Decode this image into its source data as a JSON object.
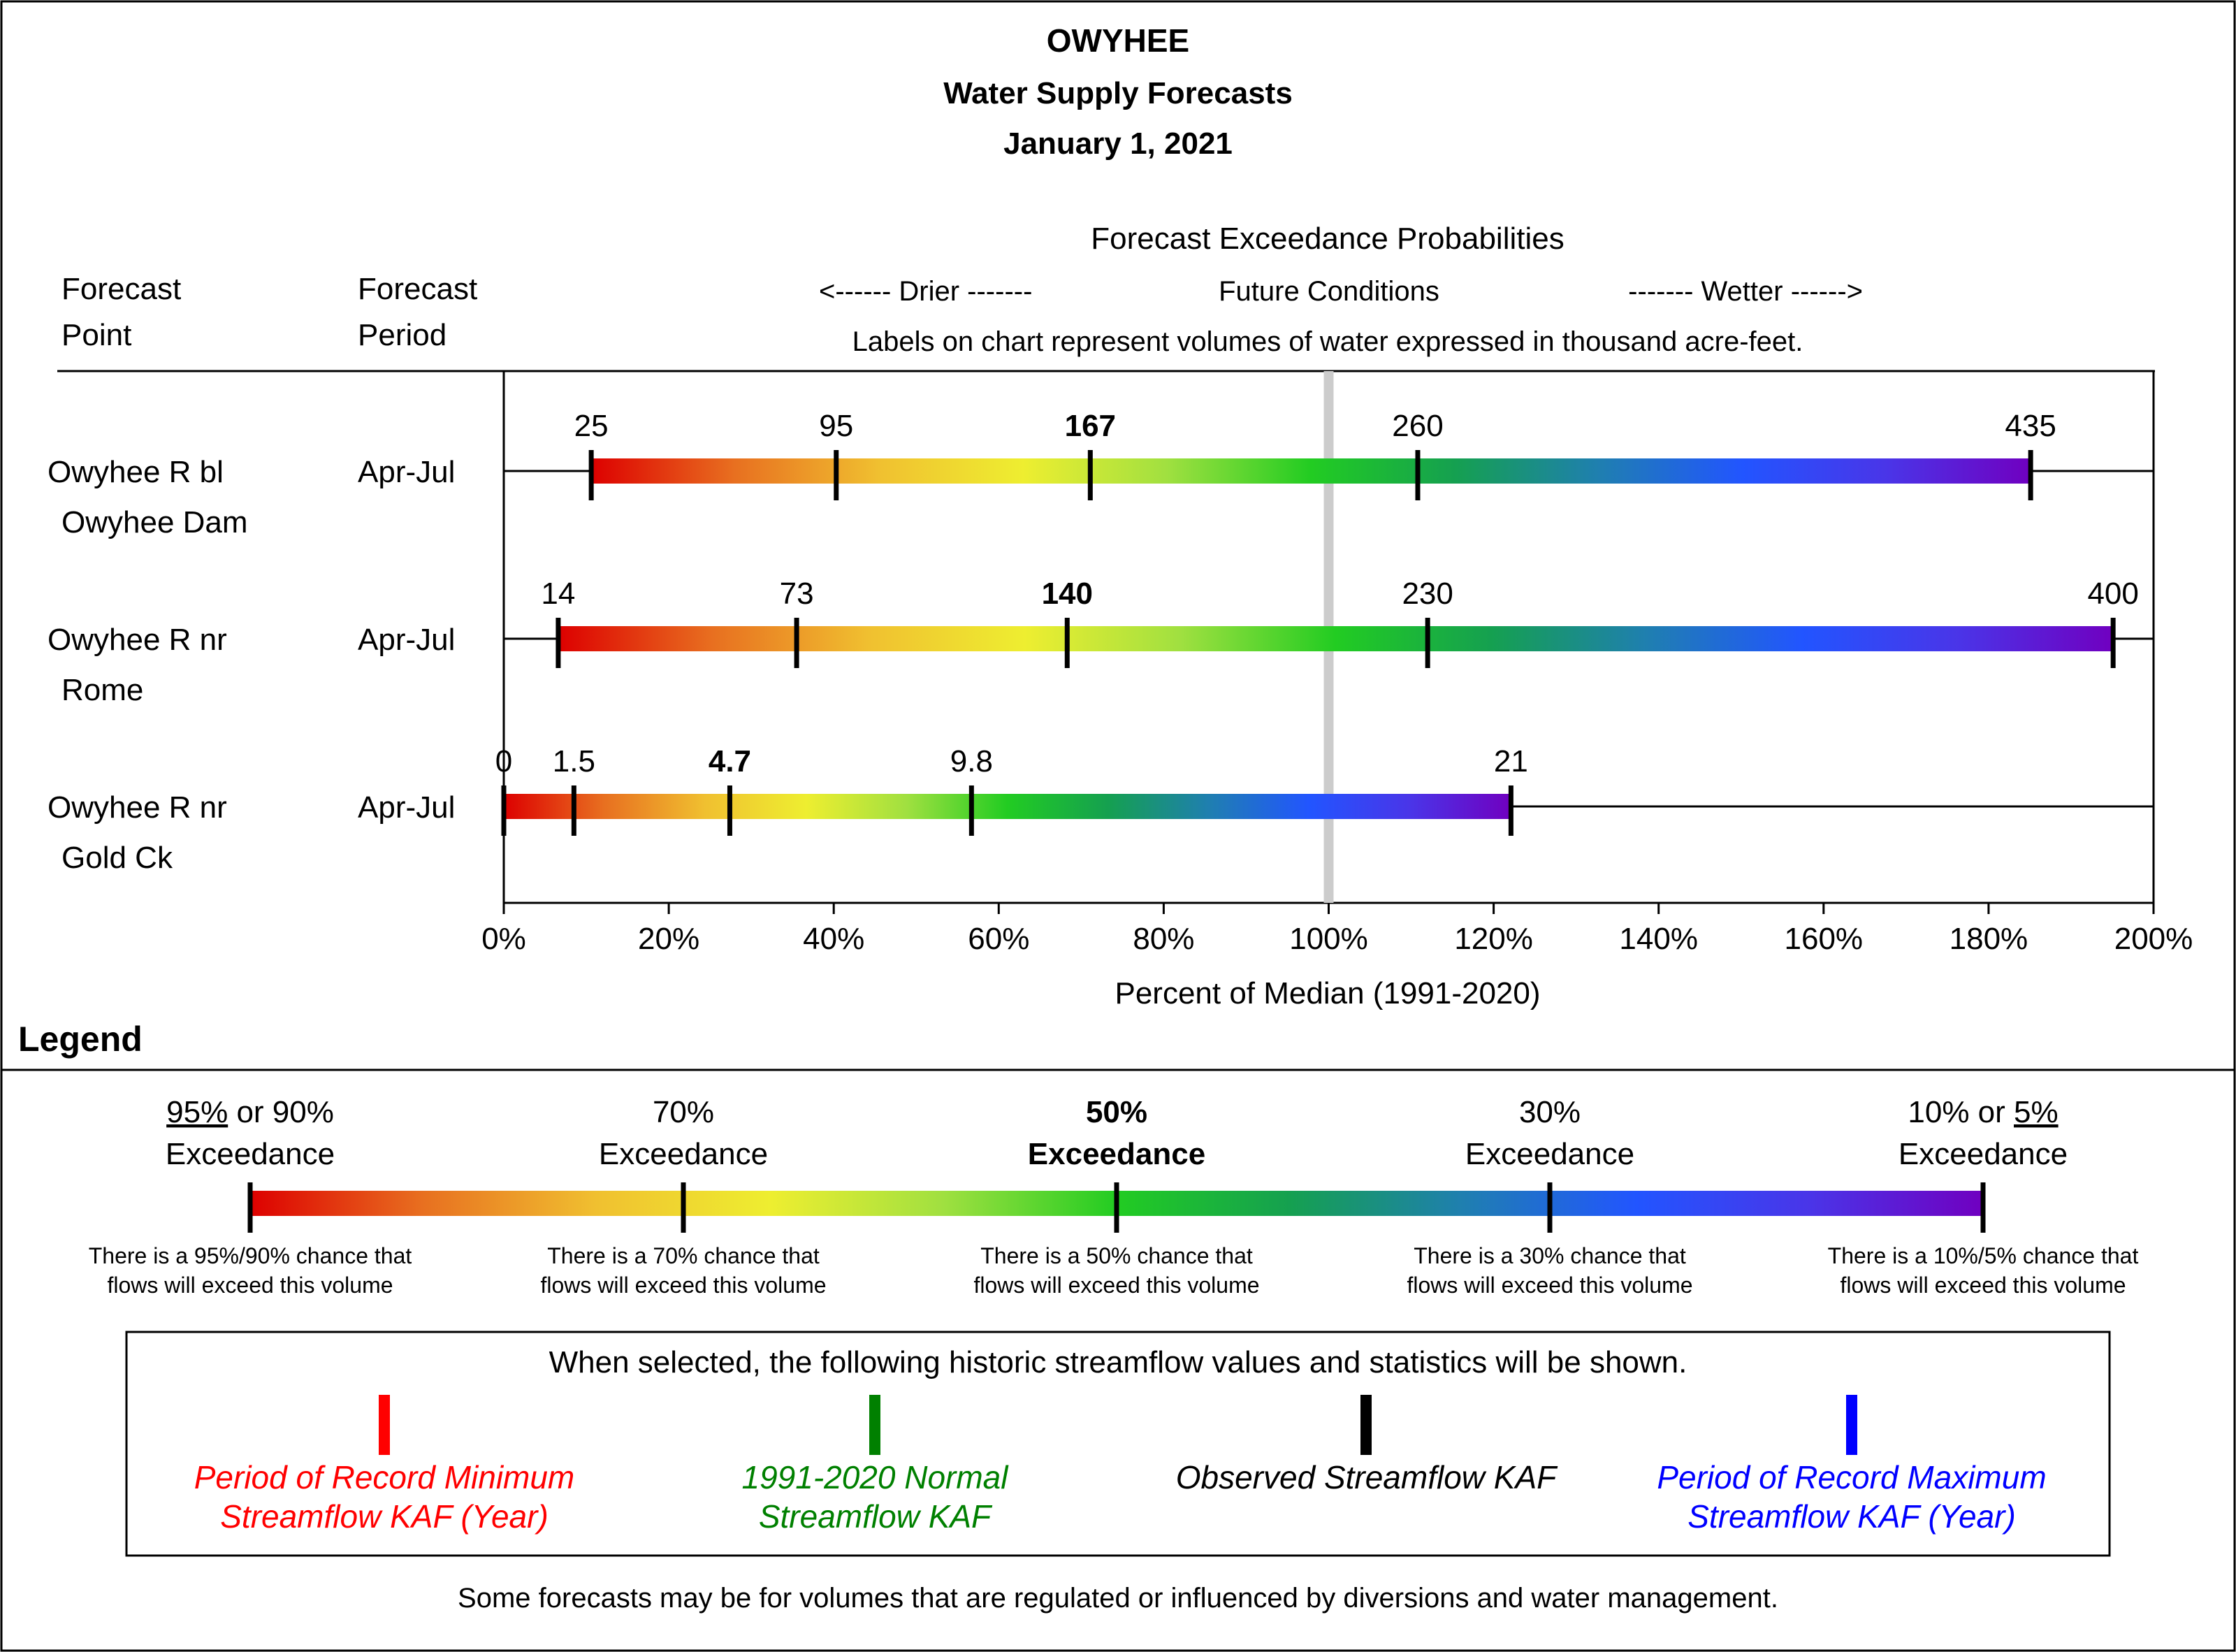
{
  "header": {
    "title": "OWYHEE",
    "subtitle": "Water Supply Forecasts",
    "date": "January 1, 2021"
  },
  "columns": {
    "point_line1": "Forecast",
    "point_line2": "Point",
    "period_line1": "Forecast",
    "period_line2": "Period",
    "probabilities_title": "Forecast Exceedance Probabilities",
    "direction_drier": "<------ Drier -------",
    "direction_future": "Future Conditions",
    "direction_wetter": "------- Wetter ------>",
    "units_note": "Labels on chart represent volumes of water expressed in thousand acre-feet."
  },
  "chart_data": {
    "type": "bar",
    "xlabel": "Percent of Median (1991-2020)",
    "xlim": [
      0,
      200
    ],
    "x_ticks": [
      "0%",
      "20%",
      "40%",
      "60%",
      "80%",
      "100%",
      "120%",
      "140%",
      "160%",
      "180%",
      "200%"
    ],
    "x_tick_values": [
      0,
      20,
      40,
      60,
      80,
      100,
      120,
      140,
      160,
      180,
      200
    ],
    "median_reference_pct": 100,
    "grid": false,
    "exceedance_levels": [
      "90%",
      "70%",
      "50%",
      "30%",
      "10%"
    ],
    "rows": [
      {
        "point_line1": "Owyhee R bl",
        "point_line2": "Owyhee Dam",
        "period": "Apr-Jul",
        "pct": [
          10.6,
          40.3,
          71.1,
          110.8,
          185.1
        ],
        "labels": [
          "25",
          "95",
          "167",
          "260",
          "435"
        ]
      },
      {
        "point_line1": "Owyhee R nr",
        "point_line2": "Rome",
        "period": "Apr-Jul",
        "pct": [
          6.6,
          35.5,
          68.3,
          112.0,
          195.1
        ],
        "labels": [
          "14",
          "73",
          "140",
          "230",
          "400"
        ]
      },
      {
        "point_line1": "Owyhee R nr",
        "point_line2": "Gold Ck",
        "period": "Apr-Jul",
        "pct": [
          0.0,
          8.5,
          27.4,
          56.7,
          122.1
        ],
        "labels": [
          "0",
          "1.5",
          "4.7",
          "9.8",
          "21"
        ]
      }
    ]
  },
  "legend": {
    "title": "Legend",
    "items": [
      {
        "line1_a": "95%",
        "line1_b": " or 90%",
        "line2": "Exceedance",
        "desc1": "There is a 95%/90% chance that",
        "desc2": "flows will exceed this volume"
      },
      {
        "line1": "70%",
        "line2": "Exceedance",
        "desc1": "There is a 70% chance that",
        "desc2": "flows will exceed this volume"
      },
      {
        "line1": "50%",
        "line2": "Exceedance",
        "desc1": "There is a 50% chance that",
        "desc2": "flows will exceed this volume"
      },
      {
        "line1": "30%",
        "line2": "Exceedance",
        "desc1": "There is a 30% chance that",
        "desc2": "flows will exceed this volume"
      },
      {
        "line1_a": "10% or ",
        "line1_b": "5%",
        "line2": "Exceedance",
        "desc1": "There is a 10%/5% chance that",
        "desc2": "flows will exceed this volume"
      }
    ],
    "historic_note": "When selected, the following historic streamflow values and statistics will be shown.",
    "historic": [
      {
        "line1": "Period of Record Minimum",
        "line2": "Streamflow KAF (Year)",
        "color": "#ff0000"
      },
      {
        "line1": "1991-2020 Normal",
        "line2": "Streamflow KAF",
        "color": "#008000"
      },
      {
        "line1": "Observed Streamflow KAF",
        "line2": "",
        "color": "#000000"
      },
      {
        "line1": "Period of Record Maximum",
        "line2": "Streamflow KAF (Year)",
        "color": "#0000ff"
      }
    ]
  },
  "footer": {
    "note": "Some forecasts may be for volumes that are regulated or influenced by diversions and water management."
  },
  "colors": {
    "gradient": [
      "#dd0000",
      "#e87020",
      "#f0c030",
      "#eeee30",
      "#a0e040",
      "#22cc22",
      "#15a050",
      "#1f7fb0",
      "#2255ff",
      "#4a35e8",
      "#7000c0"
    ],
    "median_line": "#cccccc"
  }
}
